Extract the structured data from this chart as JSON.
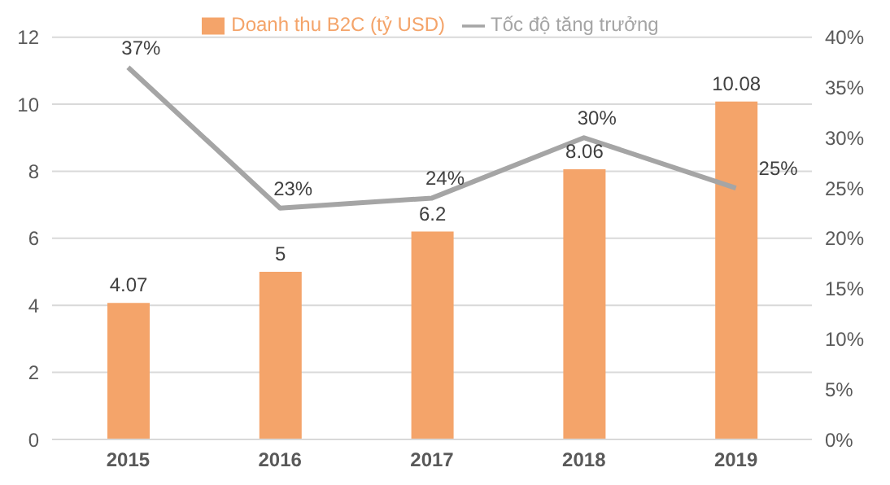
{
  "chart_data": {
    "type": "bar",
    "categories": [
      "2015",
      "2016",
      "2017",
      "2018",
      "2019"
    ],
    "series": [
      {
        "name": "Doanh thu B2C (tỷ USD)",
        "color": "#f4a46a",
        "values": [
          4.07,
          5,
          6.2,
          8.06,
          10.08
        ],
        "value_labels": [
          "4.07",
          "5",
          "6.2",
          "8.06",
          "10.08"
        ]
      },
      {
        "name": "Tốc độ tăng trưởng",
        "type": "line",
        "axis": "y2",
        "color": "#a5a5a5",
        "values": [
          37,
          23,
          24,
          30,
          25
        ],
        "value_labels": [
          "37%",
          "23%",
          "24%",
          "30%",
          "25%"
        ]
      }
    ],
    "ylim": [
      0,
      12
    ],
    "yticks": [
      0,
      2,
      4,
      6,
      8,
      10,
      12
    ],
    "y2lim": [
      0,
      40
    ],
    "y2ticks": [
      {
        "value": 0,
        "label": "0%"
      },
      {
        "value": 5,
        "label": "5%"
      },
      {
        "value": 10,
        "label": "10%"
      },
      {
        "value": 15,
        "label": "15%"
      },
      {
        "value": 20,
        "label": "20%"
      },
      {
        "value": 25,
        "label": "25%"
      },
      {
        "value": 30,
        "label": "30%"
      },
      {
        "value": 35,
        "label": "35%"
      },
      {
        "value": 40,
        "label": "40%"
      }
    ],
    "grid": "y",
    "legend": "top",
    "marker": "none",
    "line_style": "solid"
  }
}
